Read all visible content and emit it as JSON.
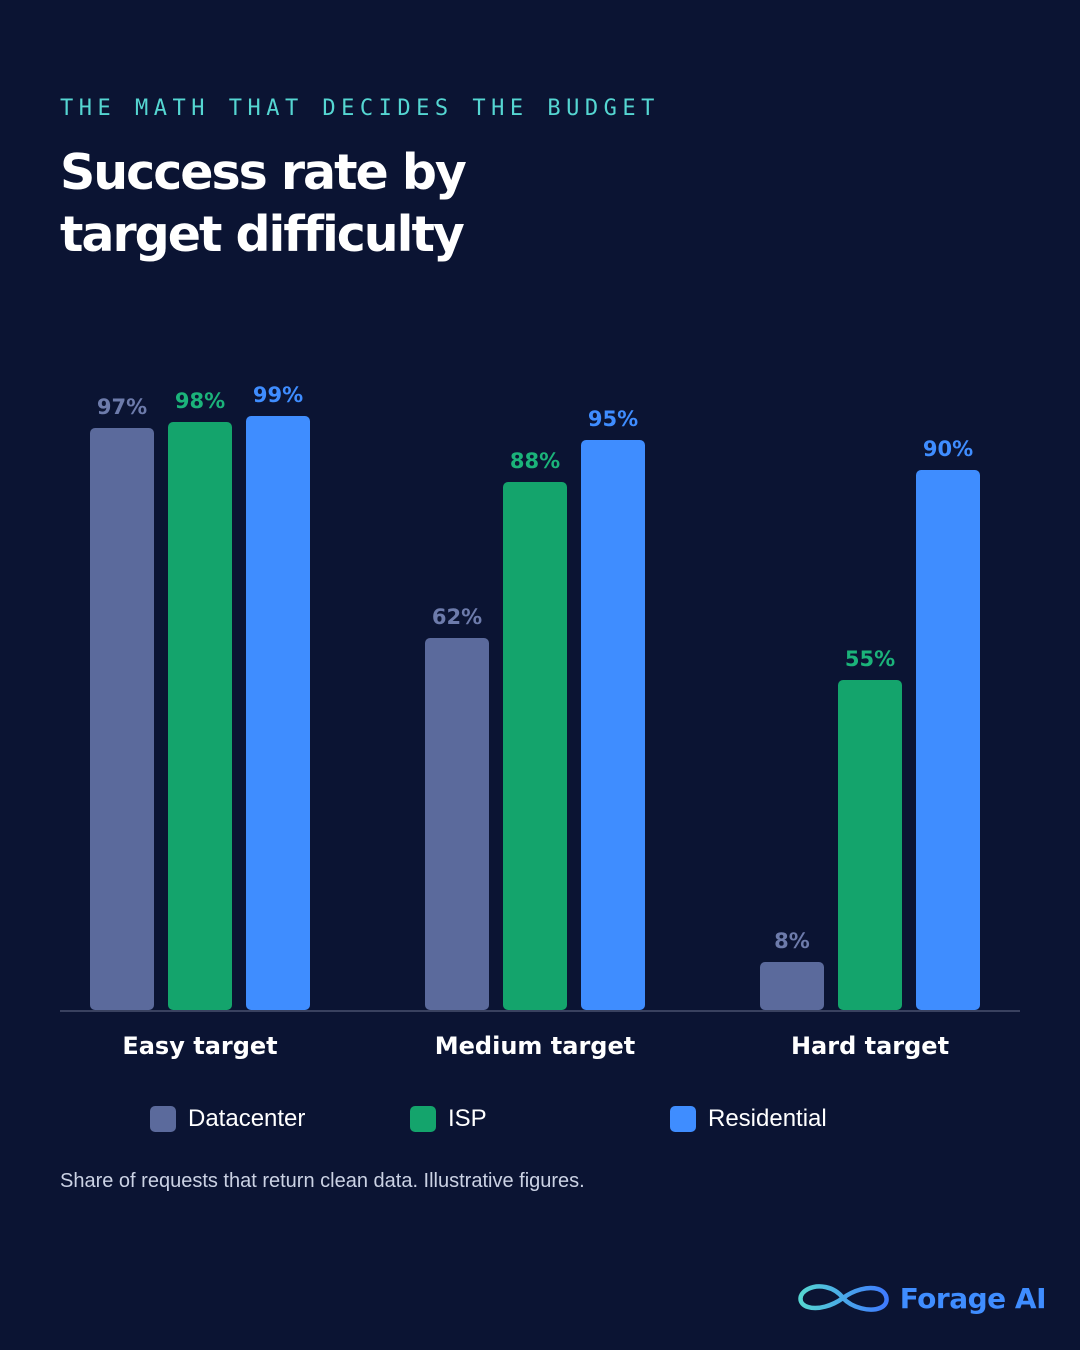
{
  "header": {
    "eyebrow": "THE MATH THAT DECIDES THE BUDGET",
    "title": "Success rate by target difficulty"
  },
  "footnote": "Share of requests that return clean data. Illustrative figures.",
  "brand": {
    "name": "Forage AI",
    "logo_icon": "infinity-icon",
    "color": "#3f8dff"
  },
  "colors": {
    "background": "#0b1433",
    "datacenter": "#5b6a9c",
    "datacenter_label": "#6d7bab",
    "isp": "#14a46c",
    "isp_label": "#1bb37a",
    "residential": "#3f8dff",
    "axis": "#39415f",
    "eyebrow": "#55d6d2"
  },
  "legend": [
    {
      "label": "Datacenter",
      "color": "#5b6a9c"
    },
    {
      "label": "ISP",
      "color": "#14a46c"
    },
    {
      "label": "Residential",
      "color": "#3f8dff"
    }
  ],
  "chart_data": {
    "type": "bar",
    "title": "Success rate by target difficulty",
    "xlabel": "",
    "ylabel": "",
    "ylim": [
      0,
      100
    ],
    "grid": false,
    "legend_position": "bottom",
    "categories": [
      "Easy target",
      "Medium target",
      "Hard target"
    ],
    "series": [
      {
        "name": "Datacenter",
        "values": [
          97,
          62,
          8
        ],
        "labels": [
          "97%",
          "62%",
          "8%"
        ]
      },
      {
        "name": "ISP",
        "values": [
          98,
          88,
          55
        ],
        "labels": [
          "98%",
          "88%",
          "55%"
        ]
      },
      {
        "name": "Residential",
        "values": [
          99,
          95,
          90
        ],
        "labels": [
          "99%",
          "95%",
          "90%"
        ]
      }
    ]
  }
}
